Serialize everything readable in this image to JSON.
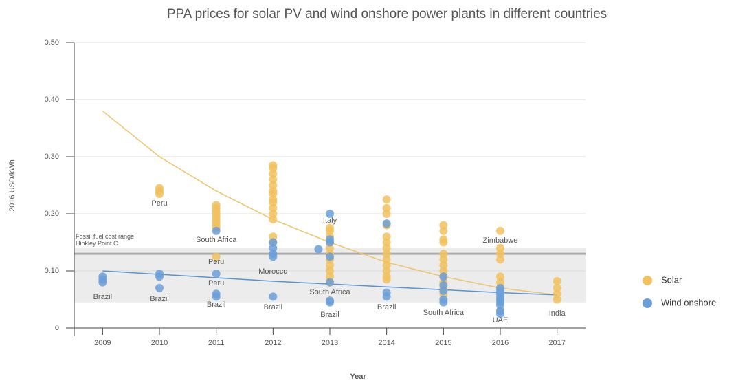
{
  "chart_data": {
    "type": "scatter",
    "title": "PPA prices for solar PV and wind onshore power plants in different countries",
    "x_label": "Year",
    "y_label": "2016 USD/kWh",
    "xlim": [
      2008.5,
      2017.5
    ],
    "xticks": [
      2009,
      2010,
      2011,
      2012,
      2013,
      2014,
      2015,
      2016,
      2017
    ],
    "ylim": [
      0,
      0.5
    ],
    "yticks": [
      0,
      {
        "value": 0.1,
        "label": "0.10"
      },
      {
        "value": 0.2,
        "label": "0.20"
      },
      {
        "value": 0.3,
        "label": "0.30"
      },
      {
        "value": 0.4,
        "label": "0.40"
      },
      {
        "value": 0.5,
        "label": "0.50"
      }
    ],
    "grid": true,
    "legend": "right",
    "series": [
      {
        "name": "Solar",
        "color": "#f1c15e",
        "x": [
          2010,
          2010,
          2010,
          2011,
          2011,
          2011,
          2011,
          2011,
          2011,
          2011,
          2011,
          2011,
          2011,
          2012,
          2012,
          2012,
          2012,
          2012,
          2012,
          2012,
          2012,
          2012,
          2012,
          2012,
          2012,
          2012,
          2012,
          2013,
          2013,
          2013,
          2013,
          2013,
          2013,
          2013,
          2013,
          2013,
          2013,
          2013,
          2014,
          2014,
          2014,
          2014,
          2014,
          2014,
          2014,
          2014,
          2014,
          2014,
          2014,
          2014,
          2014,
          2015,
          2015,
          2015,
          2015,
          2015,
          2015,
          2015,
          2015,
          2015,
          2015,
          2015,
          2015,
          2016,
          2016,
          2016,
          2016,
          2016,
          2016,
          2016,
          2016,
          2016,
          2016,
          2017,
          2017,
          2017,
          2017
        ],
        "values": [
          0.245,
          0.24,
          0.235,
          0.215,
          0.21,
          0.205,
          0.2,
          0.195,
          0.19,
          0.185,
          0.18,
          0.175,
          0.125,
          0.285,
          0.28,
          0.27,
          0.26,
          0.25,
          0.24,
          0.235,
          0.225,
          0.22,
          0.21,
          0.2,
          0.19,
          0.16,
          0.15,
          0.175,
          0.17,
          0.16,
          0.15,
          0.14,
          0.13,
          0.12,
          0.11,
          0.1,
          0.09,
          0.08,
          0.225,
          0.21,
          0.2,
          0.18,
          0.16,
          0.15,
          0.14,
          0.13,
          0.12,
          0.11,
          0.1,
          0.09,
          0.085,
          0.18,
          0.17,
          0.155,
          0.15,
          0.13,
          0.12,
          0.11,
          0.1,
          0.09,
          0.08,
          0.07,
          0.06,
          0.17,
          0.14,
          0.13,
          0.12,
          0.09,
          0.08,
          0.07,
          0.06,
          0.05,
          0.03,
          0.082,
          0.07,
          0.06,
          0.05
        ]
      },
      {
        "name": "Wind onshore",
        "color": "#6b9fd9",
        "x": [
          2009,
          2009,
          2009,
          2010,
          2010,
          2010,
          2011,
          2011,
          2011,
          2011,
          2012,
          2012,
          2012,
          2012,
          2012,
          2012.8,
          2013,
          2013,
          2013,
          2013,
          2013,
          2013,
          2013,
          2014,
          2014,
          2014,
          2015,
          2015,
          2015,
          2015,
          2015,
          2016,
          2016,
          2016,
          2016,
          2016,
          2016,
          2016,
          2016,
          2016
        ],
        "values": [
          0.09,
          0.085,
          0.08,
          0.095,
          0.09,
          0.07,
          0.17,
          0.095,
          0.06,
          0.055,
          0.15,
          0.14,
          0.13,
          0.125,
          0.055,
          0.138,
          0.2,
          0.155,
          0.15,
          0.125,
          0.08,
          0.048,
          0.045,
          0.183,
          0.062,
          0.055,
          0.09,
          0.075,
          0.065,
          0.05,
          0.045,
          0.07,
          0.065,
          0.06,
          0.055,
          0.05,
          0.045,
          0.04,
          0.03,
          0.025
        ]
      }
    ],
    "trends": [
      {
        "color": "#efc46a",
        "x": [
          2009,
          2010,
          2011,
          2012,
          2013,
          2014,
          2015,
          2016,
          2017
        ],
        "values": [
          0.38,
          0.3,
          0.24,
          0.19,
          0.15,
          0.115,
          0.09,
          0.07,
          0.058
        ]
      },
      {
        "color": "#5a93d0",
        "x": [
          2009,
          2010,
          2011,
          2012,
          2013,
          2014,
          2015,
          2016,
          2017
        ],
        "values": [
          0.1,
          0.094,
          0.088,
          0.082,
          0.077,
          0.072,
          0.067,
          0.062,
          0.058
        ]
      }
    ],
    "band": [
      0.045,
      0.14
    ],
    "reference_line": 0.13,
    "band_labels": [
      "Fossil fuel cost range",
      "Hinkley Point C"
    ],
    "annotations": [
      "Peru",
      "South Africa",
      "Peru",
      "Peru",
      "Brazil",
      "Brazil",
      "Brazil",
      "Morocco",
      "Brazil",
      "Italy",
      "South Africa",
      "Brazil",
      "Brazil",
      "South Africa",
      "Zimbabwe",
      "UAE",
      "India"
    ]
  }
}
